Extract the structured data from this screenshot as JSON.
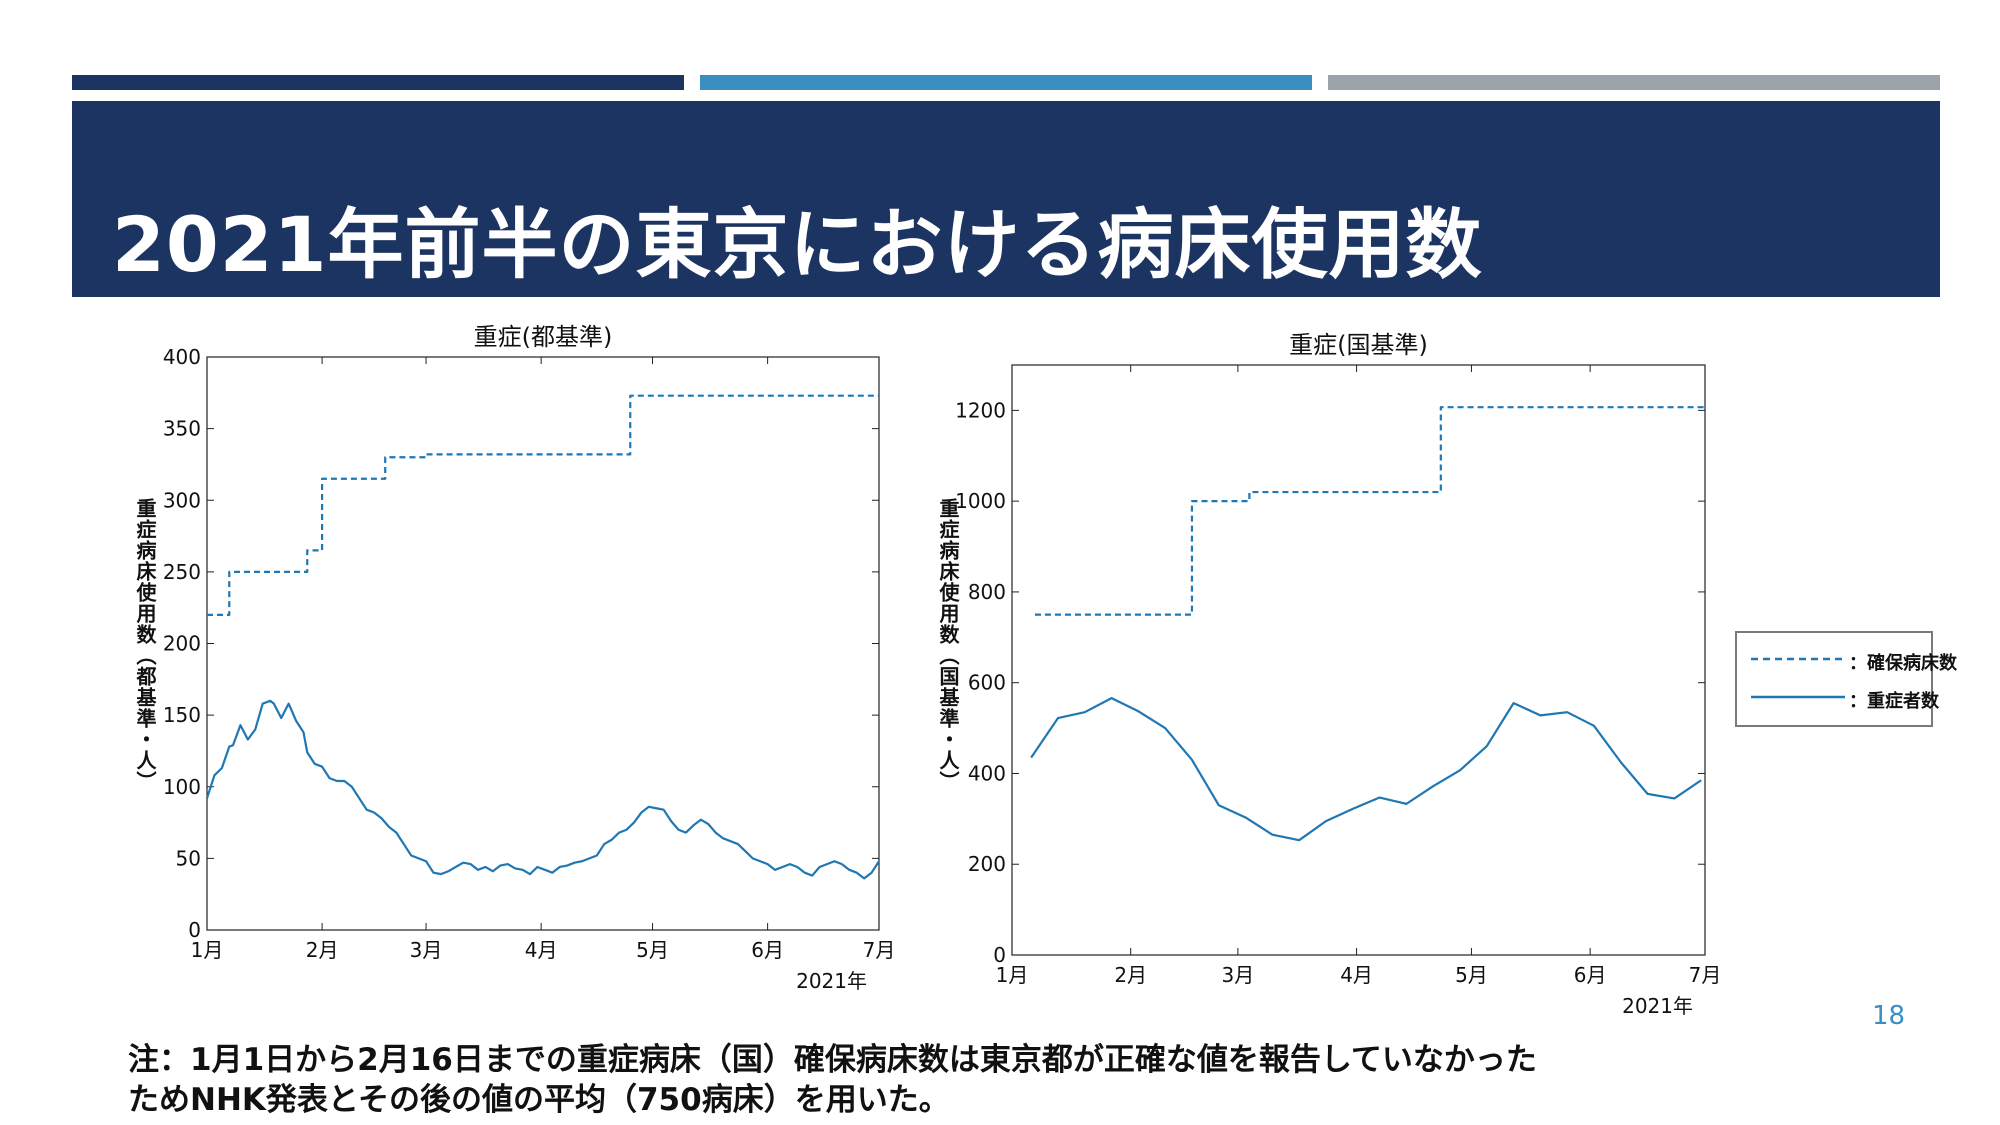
{
  "slide": {
    "title": "2021年前半の東京における病床使用数",
    "page_number": "18",
    "note_lines": [
      "注：1月1日から2月16日までの重症病床（国）確保病床数は東京都が正確な値を報告していなかった",
      "ためNHK発表とその後の値の平均（750病床）を用いた。"
    ],
    "colors": {
      "navy": "#1c3461",
      "accent_blue": "#3b8fc0",
      "gray": "#9ca3aa",
      "line": "#1f77b4"
    }
  },
  "legend": {
    "items": [
      {
        "label": "：確保病床数",
        "style": "dashed"
      },
      {
        "label": "：重症者数",
        "style": "solid"
      }
    ]
  },
  "chart_data": [
    {
      "type": "line",
      "title": "重症(都基準)",
      "ylabel": "重症病床使用数（都基準・人）",
      "xlabel": "2021年",
      "x_ticks": [
        "1月",
        "2月",
        "3月",
        "4月",
        "5月",
        "6月",
        "7月"
      ],
      "x_tick_days": [
        0,
        31,
        59,
        90,
        120,
        151,
        181
      ],
      "xlim": [
        0,
        181
      ],
      "ylim": [
        0,
        400
      ],
      "y_ticks": [
        0,
        50,
        100,
        150,
        200,
        250,
        300,
        350,
        400
      ],
      "series": [
        {
          "name": "確保病床数",
          "style": "dashed",
          "step": true,
          "x": [
            0,
            6,
            27,
            31,
            48,
            59,
            114,
            181
          ],
          "y": [
            220,
            250,
            265,
            315,
            330,
            332,
            373,
            373
          ]
        },
        {
          "name": "重症者数",
          "style": "solid",
          "x": [
            0,
            2,
            4,
            6,
            7,
            9,
            11,
            13,
            15,
            17,
            18,
            20,
            22,
            24,
            26,
            27,
            29,
            31,
            33,
            35,
            37,
            39,
            41,
            43,
            45,
            47,
            49,
            51,
            53,
            55,
            57,
            59,
            61,
            63,
            65,
            67,
            69,
            71,
            73,
            75,
            77,
            79,
            81,
            83,
            85,
            87,
            89,
            91,
            93,
            95,
            97,
            99,
            101,
            103,
            105,
            107,
            109,
            111,
            113,
            115,
            117,
            119,
            121,
            123,
            125,
            127,
            129,
            131,
            133,
            135,
            137,
            139,
            141,
            143,
            145,
            147,
            149,
            151,
            153,
            155,
            157,
            159,
            161,
            163,
            165,
            167,
            169,
            171,
            173,
            175,
            177,
            179,
            181
          ],
          "y": [
            92,
            108,
            113,
            128,
            129,
            143,
            133,
            140,
            158,
            160,
            158,
            148,
            158,
            146,
            138,
            124,
            116,
            114,
            106,
            104,
            104,
            100,
            92,
            84,
            82,
            78,
            72,
            68,
            60,
            52,
            50,
            48,
            40,
            39,
            41,
            44,
            47,
            46,
            42,
            44,
            41,
            45,
            46,
            43,
            42,
            39,
            44,
            42,
            40,
            44,
            45,
            47,
            48,
            50,
            52,
            60,
            63,
            68,
            70,
            75,
            82,
            86,
            85,
            84,
            76,
            70,
            68,
            73,
            77,
            74,
            68,
            64,
            62,
            60,
            55,
            50,
            48,
            46,
            42,
            44,
            46,
            44,
            40,
            38,
            44,
            46,
            48,
            46,
            42,
            40,
            36,
            40,
            48
          ]
        }
      ]
    },
    {
      "type": "line",
      "title": "重症(国基準)",
      "ylabel": "重症病床使用数（国基準・人）",
      "xlabel": "2021年",
      "x_ticks": [
        "1月",
        "2月",
        "3月",
        "4月",
        "5月",
        "6月",
        "7月"
      ],
      "x_tick_days": [
        0,
        31,
        59,
        90,
        120,
        151,
        181
      ],
      "xlim": [
        0,
        181
      ],
      "ylim": [
        0,
        1300
      ],
      "y_ticks": [
        0,
        200,
        400,
        600,
        800,
        1000,
        1200
      ],
      "series": [
        {
          "name": "確保病床数",
          "style": "dashed",
          "step": true,
          "x": [
            6,
            47,
            62,
            112,
            181
          ],
          "y": [
            750,
            1000,
            1020,
            1207,
            1207
          ]
        },
        {
          "name": "重症者数",
          "style": "solid",
          "x": [
            5,
            12,
            19,
            26,
            33,
            40,
            47,
            54,
            61,
            68,
            75,
            82,
            89,
            96,
            103,
            110,
            117,
            124,
            131,
            138,
            145,
            152,
            159,
            166,
            173,
            180
          ],
          "y": [
            435,
            522,
            535,
            566,
            537,
            500,
            430,
            330,
            303,
            265,
            253,
            295,
            322,
            347,
            333,
            372,
            407,
            460,
            555,
            528,
            535,
            505,
            425,
            355,
            345,
            385
          ]
        }
      ]
    }
  ]
}
